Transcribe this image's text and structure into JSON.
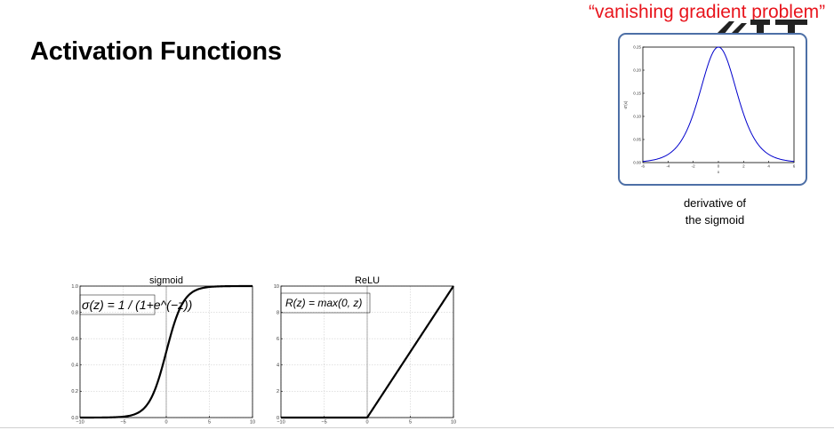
{
  "slide": {
    "title": "Activation Functions",
    "note": "“vanishing gradient problem”",
    "caption_line1": "derivative of",
    "caption_line2": "the sigmoid"
  },
  "colors": {
    "note": "#e8141c",
    "box_border": "#4d6fa6",
    "derivative_curve": "#0000cc"
  },
  "chart_data": [
    {
      "type": "line",
      "title": "",
      "xlabel": "x",
      "ylabel": "σ'(x)",
      "xlim": [
        -6,
        6
      ],
      "ylim": [
        0,
        0.25
      ],
      "x_ticks": [
        "-6",
        "-4",
        "-2",
        "0",
        "2",
        "4",
        "6"
      ],
      "y_ticks": [
        "0.00",
        "0.05",
        "0.10",
        "0.15",
        "0.20",
        "0.25"
      ],
      "function": "sigmoid_derivative",
      "series": [
        {
          "x": [
            -6,
            -4,
            -2,
            0,
            2,
            4,
            6
          ],
          "y": [
            0.0025,
            0.0177,
            0.105,
            0.25,
            0.105,
            0.0177,
            0.0025
          ]
        }
      ]
    },
    {
      "type": "line",
      "title": "sigmoid",
      "formula": "σ(z) = 1 / (1+e^(−z))",
      "xlim": [
        -10,
        10
      ],
      "ylim": [
        0,
        1.0
      ],
      "x_ticks": [
        "−10",
        "−5",
        "0",
        "5",
        "10"
      ],
      "y_ticks": [
        "0.0",
        "0.2",
        "0.4",
        "0.6",
        "0.8",
        "1.0"
      ],
      "function": "sigmoid",
      "series": [
        {
          "x": [
            -10,
            -5,
            0,
            5,
            10
          ],
          "y": [
            0.0,
            0.0067,
            0.5,
            0.9933,
            1.0
          ]
        }
      ]
    },
    {
      "type": "line",
      "title": "ReLU",
      "formula": "R(z) = max(0, z)",
      "xlim": [
        -10,
        10
      ],
      "ylim": [
        0,
        10
      ],
      "x_ticks": [
        "−10",
        "−5",
        "0",
        "5",
        "10"
      ],
      "y_ticks": [
        "0",
        "2",
        "4",
        "6",
        "8",
        "10"
      ],
      "function": "relu",
      "series": [
        {
          "x": [
            -10,
            0,
            10
          ],
          "y": [
            0,
            0,
            10
          ]
        }
      ]
    }
  ]
}
